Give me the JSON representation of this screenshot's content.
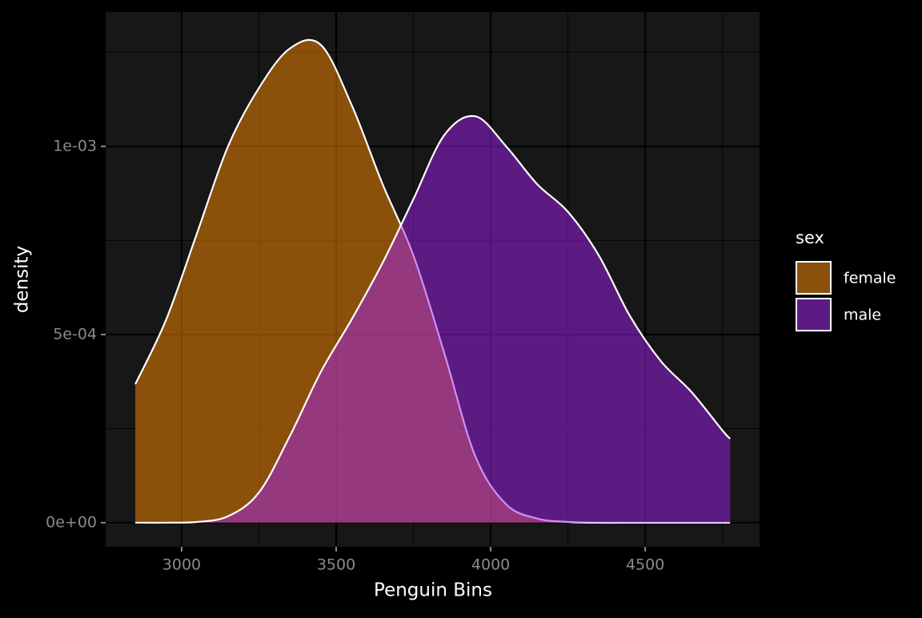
{
  "chart_data": {
    "type": "density",
    "x_label": "Penguin Bins",
    "y_label": "density",
    "legend_title": "sex",
    "legend_position": "right",
    "alpha": 0.5,
    "outline_color": "#ffffff",
    "grid": true,
    "x": [
      2850,
      2950,
      3050,
      3150,
      3250,
      3350,
      3450,
      3550,
      3650,
      3750,
      3850,
      3950,
      4050,
      4150,
      4250,
      4350,
      4450,
      4550,
      4650,
      4750,
      4775
    ],
    "series": [
      {
        "name": "female",
        "color": "#ff8c00",
        "values": [
          0.000368,
          0.00054,
          0.00077,
          0.001,
          0.001155,
          0.00126,
          0.00127,
          0.00111,
          0.0009,
          0.00071,
          0.00045,
          0.000177,
          4.9e-05,
          1.1e-05,
          2e-06,
          0,
          0,
          0,
          0,
          0,
          0
        ]
      },
      {
        "name": "male",
        "color": "#a020f0",
        "values": [
          0,
          0,
          2e-06,
          1.7e-05,
          8e-05,
          0.00023,
          0.0004,
          0.00054,
          0.00069,
          0.00086,
          0.00103,
          0.00108,
          0.001,
          0.0009,
          0.000826,
          0.00071,
          0.00055,
          0.00043,
          0.000347,
          0.000245,
          0.000223
        ]
      }
    ],
    "xlim": [
      2754,
      4870
    ],
    "ylim": [
      -6.4e-05,
      0.001357
    ],
    "xticks": [
      3000,
      3500,
      4000,
      4500
    ],
    "yticks": [
      {
        "value": 0,
        "label": "0e+00"
      },
      {
        "value": 0.0005,
        "label": "5e-04"
      },
      {
        "value": 0.001,
        "label": "1e-03"
      }
    ],
    "x_minor_grid": [
      3250,
      3750,
      4250,
      4750
    ],
    "y_minor_grid": [
      0.00025,
      0.00075,
      0.00125
    ]
  }
}
